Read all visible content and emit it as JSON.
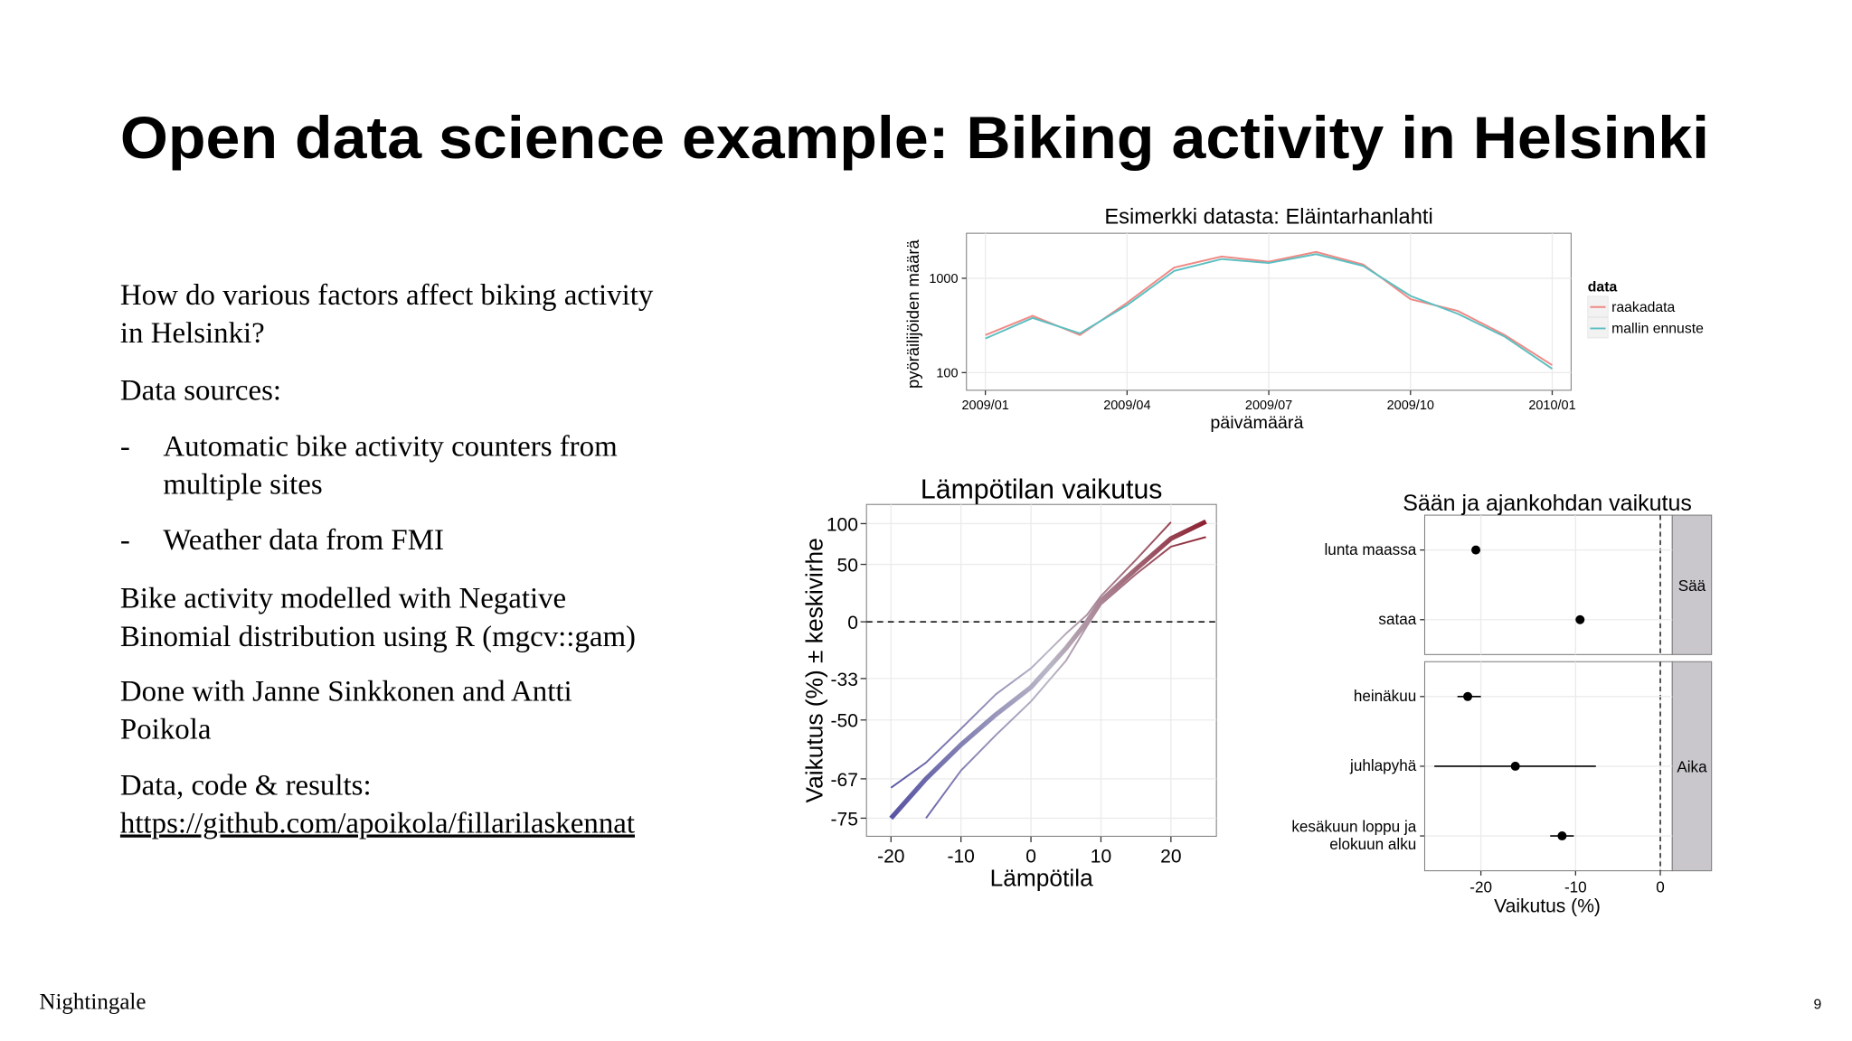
{
  "title": "Open data science example: Biking activity in Helsinki",
  "body": [
    {
      "lines": [
        "How do various factors affect biking activity",
        "in Helsinki?"
      ]
    },
    {
      "lines": [
        "Data sources:"
      ]
    },
    {
      "bullet": "-",
      "lines": [
        "Automatic bike activity counters from",
        "multiple sites"
      ]
    },
    {
      "bullet": "-",
      "lines": [
        "Weather data from FMI"
      ]
    },
    {
      "lines": [
        "Bike activity modelled with Negative",
        "Binomial distribution using R (mgcv::gam)"
      ]
    },
    {
      "lines": [
        "Done with Janne Sinkkonen and Antti",
        "Poikola"
      ]
    },
    {
      "lines": [
        "Data, code & results:"
      ]
    }
  ],
  "link": "https://github.com/apoikola/fillarilaskennat",
  "footer": {
    "brand": "Nightingale",
    "page": "9"
  },
  "chart_data": [
    {
      "type": "line",
      "title": "Esimerkki datasta: Eläintarhanlahti",
      "xlabel": "päivämäärä",
      "ylabel": "pyöräilijöiden määrä",
      "x": [
        "2009/01",
        "2009/02",
        "2009/03",
        "2009/04",
        "2009/05",
        "2009/06",
        "2009/07",
        "2009/08",
        "2009/09",
        "2009/10",
        "2009/11",
        "2009/12",
        "2010/01"
      ],
      "series": [
        {
          "name": "raakadata",
          "color": "#f08a86",
          "values": [
            250,
            400,
            250,
            550,
            1300,
            1700,
            1500,
            1900,
            1400,
            600,
            450,
            250,
            120
          ]
        },
        {
          "name": "mallin ennuste",
          "color": "#5cbfc2",
          "values": [
            230,
            380,
            260,
            520,
            1200,
            1600,
            1450,
            1800,
            1350,
            650,
            420,
            240,
            110
          ]
        }
      ],
      "legend_title": "data",
      "legend": "right",
      "log_y": true,
      "ylim": [
        65,
        3000
      ],
      "yticks": [
        100,
        1000
      ],
      "xlim": [
        "2009/01",
        "2010/01"
      ],
      "xticks": [
        "2009/01",
        "2009/04",
        "2009/07",
        "2009/10",
        "2010/01"
      ],
      "grid": true
    },
    {
      "type": "line",
      "title": "Lämpötilan vaikutus",
      "xlabel": "Lämpötila",
      "ylabel": "Vaikutus (%) ± keskivirhe",
      "x": [
        -20,
        -15,
        -10,
        -5,
        0,
        5,
        8,
        10,
        15,
        20,
        25
      ],
      "series": [
        {
          "values": [
            -75,
            -67,
            -58,
            -48,
            -37,
            -17,
            0,
            16,
            45,
            80,
            103
          ]
        },
        {
          "values": [
            -69,
            -63,
            -53,
            -40,
            -28,
            -8,
            5,
            20,
            55,
            102,
            null
          ]
        },
        {
          "values": [
            null,
            -75,
            -65,
            -55,
            -43,
            -24,
            -3,
            13,
            40,
            70,
            82
          ]
        }
      ],
      "color_scale": [
        "#5753a3",
        "#b9b7c6",
        "#8c2131"
      ],
      "yscale": "log-ratio",
      "ylim": [
        -78,
        129
      ],
      "yticks": [
        100,
        50,
        0,
        -33,
        -50,
        -67,
        -75
      ],
      "xlim": [
        -23.5,
        26.5
      ],
      "xticks": [
        -20,
        -10,
        0,
        10,
        20
      ],
      "hline": 0,
      "grid": true
    },
    {
      "type": "dot",
      "title": "Sään ja ajankohdan vaikutus",
      "xlabel": "Vaikutus (%)",
      "facets": [
        {
          "name": "Sää",
          "categories": [
            "lunta maassa",
            "sataa"
          ],
          "values": [
            -20.5,
            -9.5
          ]
        },
        {
          "name": "Aika",
          "categories": [
            "heinäkuu",
            "juhlapyhä",
            [
              "kesäkuun loppu ja",
              "elokuun alku"
            ]
          ],
          "values": [
            -21.3,
            -16.5,
            -11.5
          ],
          "lower": [
            -22.3,
            -24.5,
            -12.8
          ],
          "upper": [
            -20.0,
            -7.7,
            -10.2
          ]
        }
      ],
      "xscale": "log-ratio",
      "xlim": [
        -25.4,
        1.5
      ],
      "xticks": [
        -20,
        -10,
        0
      ],
      "vline": 0,
      "color": "#000000",
      "strip_color": "#c9c7cc",
      "grid": true
    }
  ]
}
